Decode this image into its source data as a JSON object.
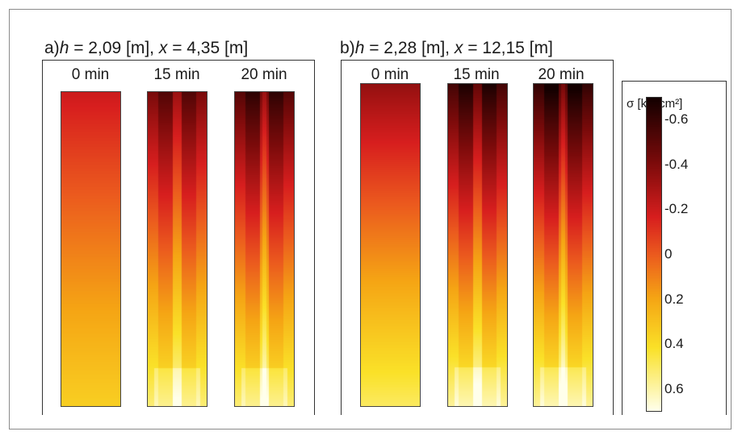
{
  "chart_data": {
    "type": "heatmap",
    "panels": [
      {
        "label": "a)",
        "h_label": "h",
        "h_text": " = 2,09 [m], ",
        "x_label": "x",
        "x_text": " = 4,35 [m]",
        "columns": [
          {
            "time": "0 min",
            "pattern": "uniform",
            "top_value": -0.2,
            "bottom_value": 0.35
          },
          {
            "time": "15 min",
            "pattern": "banded",
            "top_value": -0.45,
            "bottom_value": 0.5
          },
          {
            "time": "20 min",
            "pattern": "banded-center",
            "top_value": -0.55,
            "bottom_value": 0.5
          }
        ]
      },
      {
        "label": "b)",
        "h_label": "h",
        "h_text": " = 2,28 [m], ",
        "x_label": "x",
        "x_text": " = 12,15 [m]",
        "columns": [
          {
            "time": "0 min",
            "pattern": "uniform",
            "top_value": -0.35,
            "bottom_value": 0.5
          },
          {
            "time": "15 min",
            "pattern": "banded",
            "top_value": -0.6,
            "bottom_value": 0.55
          },
          {
            "time": "20 min",
            "pattern": "banded-center",
            "top_value": -0.65,
            "bottom_value": 0.55
          }
        ]
      }
    ],
    "colorbar": {
      "title": "σ [kN/cm²]",
      "range": [
        -0.7,
        0.7
      ],
      "ticks": [
        "-0.6",
        "-0.4",
        "-0.2",
        "0",
        "0.2",
        "0.4",
        "0.6"
      ],
      "colormap": "hot-reversed"
    }
  }
}
